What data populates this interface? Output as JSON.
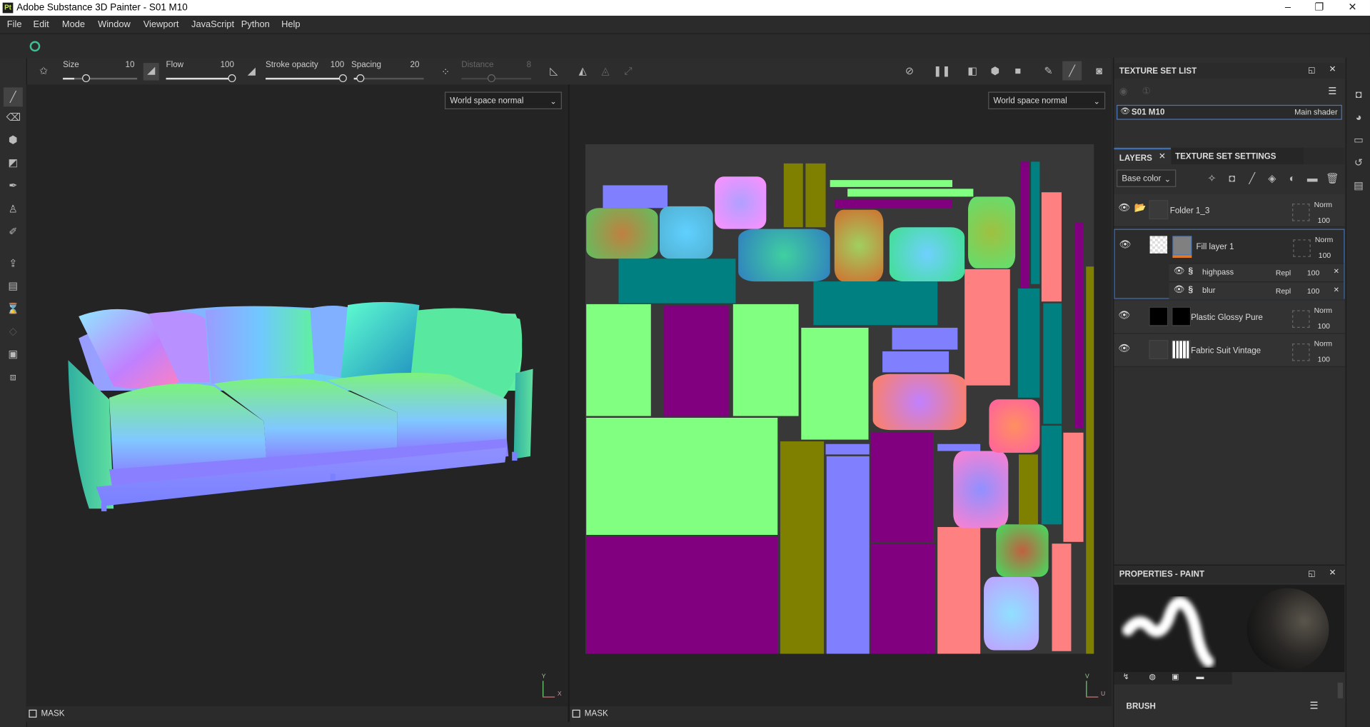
{
  "window": {
    "title": "Adobe Substance 3D Painter - S01 M10",
    "app_icon": "Pt"
  },
  "menu": [
    "File",
    "Edit",
    "Mode",
    "Window",
    "Viewport",
    "JavaScript",
    "Python",
    "Help"
  ],
  "tool_options": {
    "size": {
      "label": "Size",
      "value": "10",
      "fraction": 0.15
    },
    "flow": {
      "label": "Flow",
      "value": "100",
      "fraction": 1.0
    },
    "stroke_opacity": {
      "label": "Stroke opacity",
      "value": "100",
      "fraction": 1.0
    },
    "spacing": {
      "label": "Spacing",
      "value": "20",
      "fraction": 0.05
    },
    "distance": {
      "label": "Distance",
      "value": "8",
      "fraction": 0.4
    }
  },
  "viewport3d": {
    "mode": "World space normal",
    "mask_label": "MASK",
    "axis": {
      "y": "Y",
      "x": "X"
    }
  },
  "viewport2d": {
    "mode": "World space normal",
    "mask_label": "MASK",
    "axis": {
      "v": "V",
      "u": "U"
    }
  },
  "texture_set_list": {
    "title": "TEXTURE SET LIST",
    "item": {
      "name": "S01 M10",
      "shader": "Main shader"
    }
  },
  "layers_panel": {
    "tabs": [
      "LAYERS",
      "TEXTURE SET SETTINGS"
    ],
    "channel": "Base color",
    "layers": [
      {
        "name": "Folder 1_3",
        "blend": "Norm",
        "opacity": "100"
      },
      {
        "name": "Fill layer 1",
        "blend": "Norm",
        "opacity": "100",
        "effects": [
          {
            "name": "highpass",
            "blend": "Repl",
            "opacity": "100"
          },
          {
            "name": "blur",
            "blend": "Repl",
            "opacity": "100"
          }
        ]
      },
      {
        "name": "Plastic Glossy Pure",
        "blend": "Norm",
        "opacity": "100"
      },
      {
        "name": "Fabric Suit Vintage",
        "blend": "Norm",
        "opacity": "100"
      }
    ]
  },
  "properties": {
    "title": "PROPERTIES - PAINT",
    "section": "BRUSH"
  },
  "colors": {
    "accent": "#3c6fb4",
    "fill_mask": "#e07a2a",
    "logo_green": "#3fbf8f"
  }
}
